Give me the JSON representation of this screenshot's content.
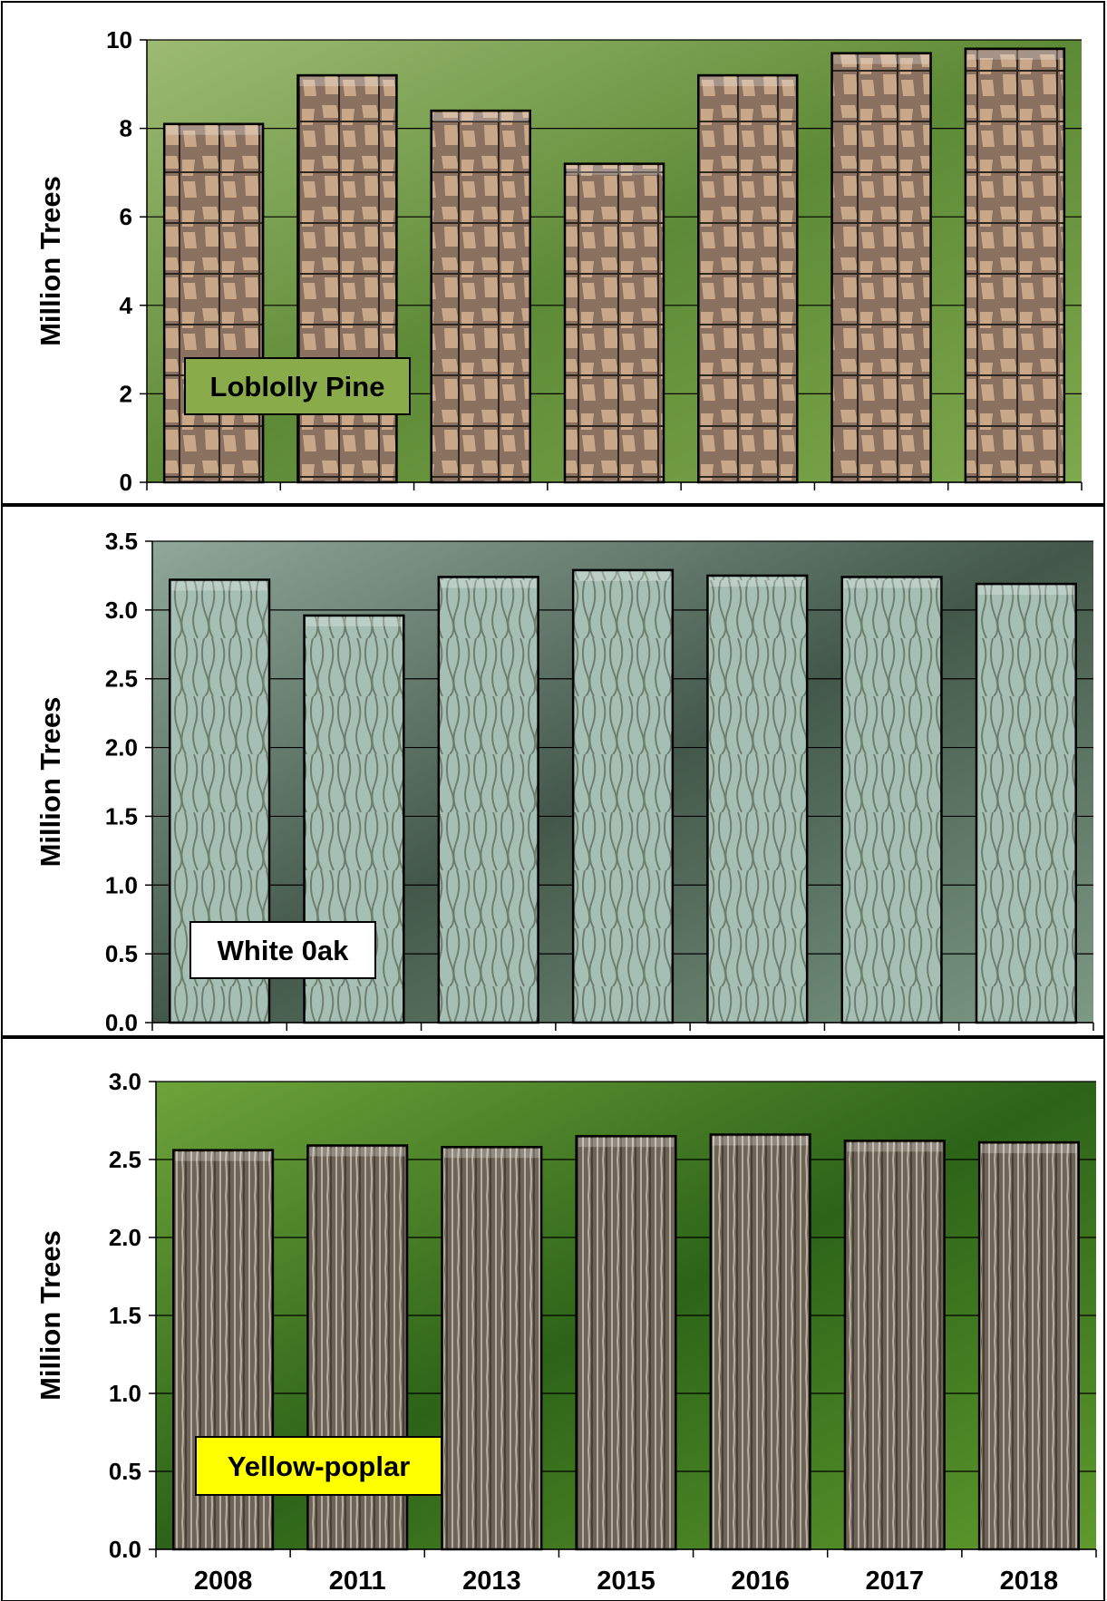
{
  "chart_data": [
    {
      "type": "bar",
      "label_box": "Loblolly Pine",
      "categories": [
        "2008",
        "2011",
        "2013",
        "2015",
        "2016",
        "2017",
        "2018"
      ],
      "values": [
        8.1,
        9.2,
        8.4,
        7.2,
        9.2,
        9.7,
        9.8
      ],
      "ylabel": "Million Trees",
      "ylim": [
        0,
        10
      ],
      "yticks": [
        "0",
        "2",
        "4",
        "6",
        "8",
        "10"
      ],
      "grid": true,
      "colors": {
        "background": "#5f8a3a",
        "bar": "#7a6552",
        "bar_light": "#c9a889",
        "label_bg": "#8aab4a"
      }
    },
    {
      "type": "bar",
      "label_box": "White 0ak",
      "categories": [
        "2008",
        "2011",
        "2013",
        "2015",
        "2016",
        "2017",
        "2018"
      ],
      "values": [
        3.22,
        2.96,
        3.24,
        3.29,
        3.25,
        3.24,
        3.19
      ],
      "ylabel": "Million Trees",
      "ylim": [
        0,
        3.5
      ],
      "yticks": [
        "0.0",
        "0.5",
        "1.0",
        "1.5",
        "2.0",
        "2.5",
        "3.0",
        "3.5"
      ],
      "grid": true,
      "colors": {
        "background": "#4f6b58",
        "bar": "#9fb8ad",
        "bar_light": "#cfe0d8",
        "label_bg": "#ffffff"
      }
    },
    {
      "type": "bar",
      "label_box": "Yellow-poplar",
      "categories": [
        "2008",
        "2011",
        "2013",
        "2015",
        "2016",
        "2017",
        "2018"
      ],
      "values": [
        2.56,
        2.59,
        2.58,
        2.65,
        2.66,
        2.62,
        2.61
      ],
      "ylabel": "Million Trees",
      "ylim": [
        0,
        3.0
      ],
      "yticks": [
        "0.0",
        "0.5",
        "1.0",
        "1.5",
        "2.0",
        "2.5",
        "3.0"
      ],
      "grid": true,
      "colors": {
        "background": "#2f6a1c",
        "bar": "#5e5548",
        "bar_light": "#a39a8c",
        "label_bg": "#ffff00"
      }
    }
  ]
}
